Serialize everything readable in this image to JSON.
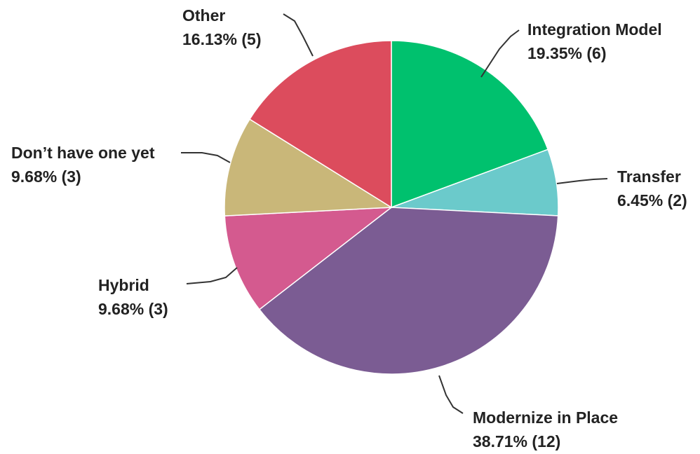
{
  "chart_data": {
    "type": "pie",
    "title": "",
    "start_angle_deg": 0,
    "direction": "clockwise",
    "slices": [
      {
        "label": "Integration Model",
        "percent_text": "19.35%",
        "count_text": "(6)",
        "percent": 19.35,
        "count": 6,
        "color": "#00c16e"
      },
      {
        "label": "Transfer",
        "percent_text": "6.45%",
        "count_text": "(2)",
        "percent": 6.45,
        "count": 2,
        "color": "#6bcacb"
      },
      {
        "label": "Modernize in Place",
        "percent_text": "38.71%",
        "count_text": "(12)",
        "percent": 38.71,
        "count": 12,
        "color": "#7b5c93"
      },
      {
        "label": "Hybrid",
        "percent_text": "9.68%",
        "count_text": "(3)",
        "percent": 9.68,
        "count": 3,
        "color": "#d45a8f"
      },
      {
        "label": "Don’t have one yet",
        "percent_text": "9.68%",
        "count_text": "(3)",
        "percent": 9.68,
        "count": 3,
        "color": "#c9b779"
      },
      {
        "label": "Other",
        "percent_text": "16.13%",
        "count_text": "(5)",
        "percent": 16.13,
        "count": 5,
        "color": "#dc4c5d"
      }
    ]
  }
}
